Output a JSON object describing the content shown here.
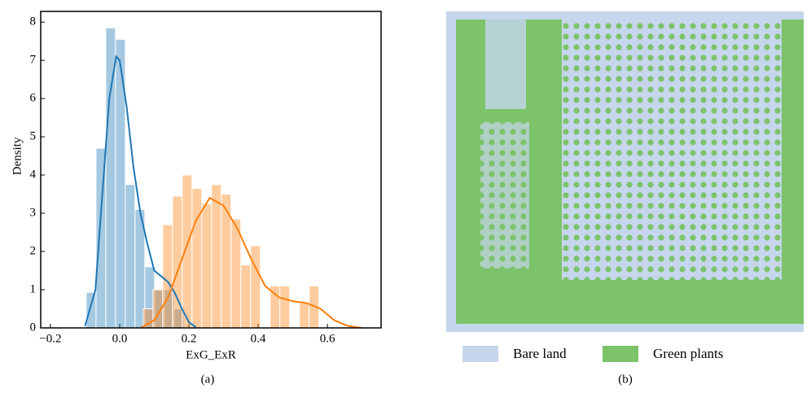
{
  "chart_data": {
    "type": "histogram",
    "x_label": "ExG_ExR",
    "y_label": "Density",
    "caption": "(a)",
    "xlim": [
      -0.228,
      0.755
    ],
    "ylim": [
      0,
      8.28
    ],
    "xticks": [
      {
        "value": -0.2,
        "label": "−0.2"
      },
      {
        "value": 0,
        "label": "0.0"
      },
      0.2,
      0.4,
      0.6
    ],
    "yticks": [
      0,
      1,
      2,
      3,
      4,
      5,
      6,
      7,
      8
    ],
    "series": [
      {
        "color": "#1f77b4",
        "bins": [
          -0.0965,
          -0.0683,
          -0.0401,
          -0.0119,
          0.0163,
          0.0445,
          0.0727,
          0.1009,
          0.1291,
          0.1573,
          0.1855
        ],
        "values": [
          0.93,
          4.7,
          7.85,
          7.55,
          3.75,
          3.1,
          1.6,
          1.0,
          1.0,
          0.5
        ],
        "kde": {
          "x": [
            -0.1,
            -0.07,
            -0.05,
            -0.03,
            -0.01,
            0.0,
            0.02,
            0.04,
            0.06,
            0.08,
            0.1,
            0.12,
            0.14,
            0.16,
            0.18,
            0.2,
            0.22
          ],
          "values": [
            0.05,
            1.0,
            3.5,
            6.0,
            7.1,
            7.0,
            5.8,
            4.2,
            3.0,
            2.2,
            1.5,
            1.35,
            1.2,
            0.9,
            0.5,
            0.15,
            0.02
          ]
        }
      },
      {
        "color": "#ff7f0e",
        "bins": [
          0.068,
          0.0962,
          0.1244,
          0.1526,
          0.1808,
          0.209,
          0.2372,
          0.2654,
          0.2936,
          0.3218,
          0.35,
          0.3782,
          0.4064,
          0.4346,
          0.4628,
          0.491,
          0.5192,
          0.5474,
          0.5756
        ],
        "values": [
          0.5,
          1.0,
          2.7,
          3.45,
          4.0,
          3.65,
          3.25,
          3.75,
          3.5,
          2.85,
          1.65,
          2.15,
          0,
          1.1,
          1.1,
          0,
          0.65,
          1.1
        ],
        "kde": {
          "x": [
            0.06,
            0.1,
            0.14,
            0.18,
            0.22,
            0.26,
            0.3,
            0.34,
            0.38,
            0.42,
            0.46,
            0.5,
            0.54,
            0.58,
            0.62,
            0.66,
            0.7
          ],
          "values": [
            0,
            0.2,
            0.8,
            1.8,
            2.8,
            3.4,
            3.2,
            2.6,
            1.8,
            1.1,
            0.8,
            0.7,
            0.65,
            0.5,
            0.2,
            0.05,
            0
          ]
        }
      }
    ]
  },
  "panel_b": {
    "caption": "(b)",
    "legend": [
      {
        "name": "Bare land",
        "color": "#c6d6ec"
      },
      {
        "name": "Green plants",
        "color": "#7cc36a"
      }
    ]
  }
}
